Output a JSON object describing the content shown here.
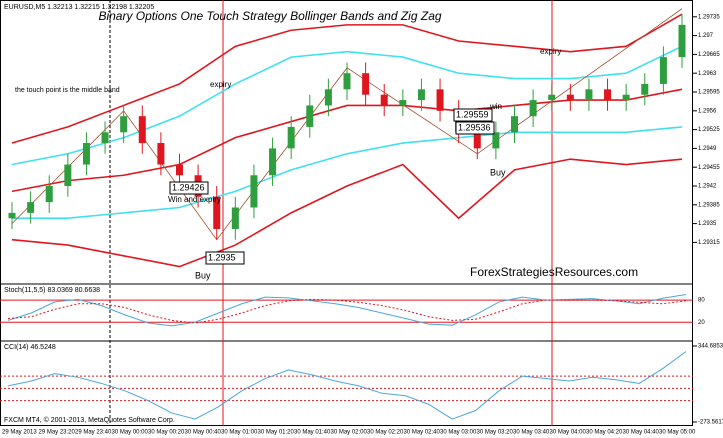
{
  "header": {
    "symbol": "EURUSD,M5  1.32213 1.32215 1.32198 1.32205",
    "footer": "FXCM MT4, © 2001-2013, MetaQuotes Software Corp."
  },
  "chart_data": [
    {
      "type": "candlestick",
      "title": "Binary Options One Touch Strategy Bollinger Bands and Zig Zag",
      "ylim": [
        1.29245,
        1.29757
      ],
      "yticks": [
        1.29315,
        1.2935,
        1.29385,
        1.2942,
        1.29455,
        1.2949,
        1.29525,
        1.2956,
        1.29595,
        1.2963,
        1.29665,
        1.297,
        1.29735
      ],
      "up_color": "#2e9e3e",
      "down_color": "#e0161e",
      "open": [
        1.2936,
        1.2937,
        1.2939,
        1.2942,
        1.2946,
        1.295,
        1.2952,
        1.2955,
        1.295,
        1.2946,
        1.2944,
        1.294,
        1.2934,
        1.2938,
        1.2944,
        1.2949,
        1.2953,
        1.2957,
        1.296,
        1.2963,
        1.2959,
        1.2957,
        1.2958,
        1.296,
        1.2956,
        1.2952,
        1.2949,
        1.2952,
        1.2955,
        1.2958,
        1.2959,
        1.2958,
        1.296,
        1.2958,
        1.2959,
        1.2961,
        1.2966
      ],
      "high": [
        1.2939,
        1.2941,
        1.2944,
        1.2948,
        1.2952,
        1.2954,
        1.2957,
        1.2957,
        1.2952,
        1.2948,
        1.2946,
        1.2942,
        1.294,
        1.2946,
        1.2951,
        1.2955,
        1.2959,
        1.2962,
        1.2965,
        1.2965,
        1.2961,
        1.296,
        1.2962,
        1.2962,
        1.2958,
        1.2954,
        1.2954,
        1.2957,
        1.296,
        1.2961,
        1.2961,
        1.2962,
        1.2962,
        1.2961,
        1.2963,
        1.2968,
        1.2974
      ],
      "low": [
        1.2934,
        1.2935,
        1.2937,
        1.294,
        1.2944,
        1.2948,
        1.295,
        1.2948,
        1.2944,
        1.2942,
        1.2938,
        1.2932,
        1.2932,
        1.2936,
        1.2942,
        1.2947,
        1.2951,
        1.2955,
        1.2958,
        1.2957,
        1.2955,
        1.2955,
        1.2956,
        1.2954,
        1.295,
        1.2947,
        1.2947,
        1.295,
        1.2953,
        1.2956,
        1.2956,
        1.2956,
        1.2956,
        1.2956,
        1.2957,
        1.2959,
        1.2964
      ],
      "close": [
        1.2937,
        1.2939,
        1.2942,
        1.2946,
        1.295,
        1.2952,
        1.2955,
        1.295,
        1.2946,
        1.2944,
        1.294,
        1.2934,
        1.2938,
        1.2944,
        1.2949,
        1.2953,
        1.2957,
        1.296,
        1.2963,
        1.2959,
        1.2957,
        1.2958,
        1.296,
        1.2956,
        1.2952,
        1.2949,
        1.2952,
        1.2955,
        1.2958,
        1.2959,
        1.2958,
        1.296,
        1.2958,
        1.2959,
        1.2961,
        1.2966,
        1.2972
      ],
      "overlays": {
        "x": [
          0,
          3,
          6,
          9,
          12,
          15,
          18,
          21,
          24,
          27,
          30,
          33,
          36
        ],
        "series": [
          {
            "color": "#e0161e",
            "values": [
              1.295,
              1.2953,
              1.2957,
              1.2961,
              1.2968,
              1.2971,
              1.2972,
              1.2972,
              1.2969,
              1.2968,
              1.2967,
              1.2968,
              1.2974
            ]
          },
          {
            "color": "#3fe0f0",
            "values": [
              1.2946,
              1.2948,
              1.2951,
              1.2955,
              1.2961,
              1.2966,
              1.2967,
              1.2966,
              1.2963,
              1.2962,
              1.2962,
              1.2963,
              1.2968
            ]
          },
          {
            "color": "#e0161e",
            "values": [
              1.2941,
              1.2943,
              1.2944,
              1.2946,
              1.2951,
              1.2954,
              1.2957,
              1.2957,
              1.2956,
              1.2957,
              1.2958,
              1.2958,
              1.296
            ]
          },
          {
            "color": "#3fe0f0",
            "values": [
              1.2936,
              1.2936,
              1.2937,
              1.2938,
              1.2941,
              1.2945,
              1.2948,
              1.295,
              1.2951,
              1.2952,
              1.2952,
              1.2952,
              1.2953
            ]
          },
          {
            "color": "#e0161e",
            "values": [
              1.2932,
              1.2931,
              1.2929,
              1.2927,
              1.2931,
              1.2937,
              1.2942,
              1.2946,
              1.2936,
              1.2945,
              1.2947,
              1.2946,
              1.2947
            ]
          }
        ]
      },
      "zigzag": {
        "color": "#a0522d",
        "x": [
          0,
          6,
          11,
          18,
          25,
          36
        ],
        "values": [
          1.2935,
          1.2956,
          1.2932,
          1.2964,
          1.2948,
          1.2975
        ]
      },
      "annotations": [
        "the touch point is the middle band",
        "expiry",
        "expiry",
        "Win and expiry",
        "win",
        "Buy",
        "Buy",
        "ForexStrategiesResources.com"
      ],
      "price_labels": [
        "1.29426",
        "1.2935",
        "1.29559",
        "1.29536"
      ]
    },
    {
      "type": "line",
      "title": "Stoch(11,5,5) 83.0369 80.6638",
      "ylim": [
        -20,
        110
      ],
      "yticks": [
        20,
        80
      ],
      "series": [
        {
          "color": "#4aa8d8",
          "values": [
            25,
            45,
            75,
            82,
            65,
            40,
            18,
            10,
            20,
            45,
            70,
            88,
            86,
            78,
            70,
            60,
            45,
            30,
            15,
            12,
            40,
            75,
            88,
            80,
            82,
            84,
            78,
            70,
            85,
            95
          ]
        },
        {
          "color": "#e0161e",
          "dashed": true,
          "values": [
            30,
            35,
            55,
            70,
            70,
            60,
            40,
            25,
            18,
            28,
            45,
            65,
            78,
            82,
            80,
            74,
            65,
            52,
            35,
            25,
            28,
            48,
            70,
            80,
            80,
            80,
            78,
            74,
            70,
            78
          ]
        }
      ]
    },
    {
      "type": "line",
      "title": "CCI(14) 46.5248",
      "ylim": [
        -273.5617,
        344.6853
      ],
      "yticks": [
        -273.5617,
        344.6853
      ],
      "levels": [
        100,
        0,
        -100
      ],
      "series": [
        {
          "color": "#4aa8d8",
          "values": [
            20,
            60,
            120,
            90,
            40,
            -20,
            -100,
            -200,
            -250,
            -150,
            -20,
            80,
            150,
            110,
            60,
            20,
            -40,
            -60,
            -130,
            -250,
            -180,
            -20,
            100,
            80,
            60,
            90,
            70,
            40,
            160,
            300
          ]
        }
      ]
    }
  ],
  "time_axis": [
    "29 May 2013",
    "29 May 23:20",
    "29 May 23:40",
    "30 May 00:00",
    "30 May 00:20",
    "30 May 00:40",
    "30 May 01:00",
    "30 May 01:20",
    "30 May 01:40",
    "30 May 02:00",
    "30 May 02:20",
    "30 May 02:40",
    "30 May 03:00",
    "30 May 03:20",
    "30 May 03:40",
    "30 May 04:00",
    "30 May 04:20",
    "30 May 04:40",
    "30 May 05:00"
  ]
}
